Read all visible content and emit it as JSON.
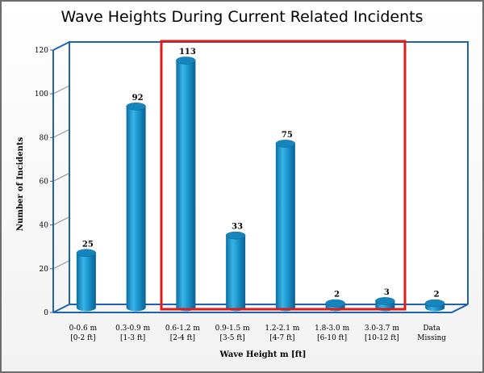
{
  "chart_data": {
    "type": "bar",
    "title": "Wave Heights During Current Related Incidents",
    "xlabel": "Wave Height m [ft]",
    "ylabel": "Number of Incidents",
    "ylim": [
      0,
      120
    ],
    "yticks": [
      0,
      20,
      40,
      60,
      80,
      100,
      120
    ],
    "categories": [
      [
        "0-0.6 m",
        "[0-2 ft]"
      ],
      [
        "0.3-0.9 m",
        "[1-3 ft]"
      ],
      [
        "0.6-1.2 m",
        "[2-4 ft]"
      ],
      [
        "0.9-1.5 m",
        "[3-5 ft]"
      ],
      [
        "1.2-2.1 m",
        "[4-7 ft]"
      ],
      [
        "1.8-3.0 m",
        "[6-10 ft]"
      ],
      [
        "3.0-3.7 m",
        "[10-12 ft]"
      ],
      [
        "Data",
        "Missing"
      ]
    ],
    "values": [
      25,
      92,
      113,
      33,
      75,
      2,
      3,
      2
    ],
    "data_labels": [
      "25",
      "92",
      "113",
      "33",
      "75",
      "2",
      "3",
      "2"
    ],
    "highlight": {
      "from_category": 2,
      "to_category": 6,
      "color": "#e01b1b"
    },
    "grid": true,
    "bar_color": "#1a97d0",
    "frame_color": "#1f63b0"
  }
}
